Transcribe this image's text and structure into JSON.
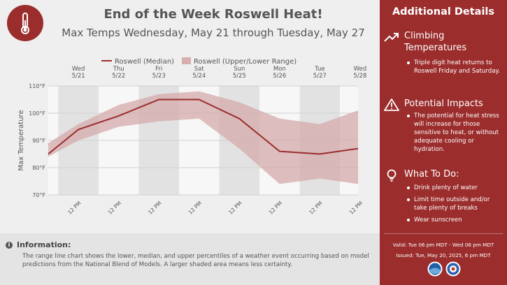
{
  "header": {
    "title": "End of the Week Roswell Heat!",
    "subtitle": "Max Temps Wednesday, May 21 through Tuesday, May 27",
    "badge_icon": "thermometer-icon"
  },
  "chart_data": {
    "type": "area",
    "legend": [
      {
        "label": "Roswell (Median)",
        "color": "#9b2d2d"
      },
      {
        "label": "Roswell (Upper/Lower Range)",
        "color": "#d7aeae"
      }
    ],
    "legend_position": "top",
    "ylabel": "Max Temperature",
    "ylim": [
      70,
      110
    ],
    "y_ticks": [
      70,
      80,
      90,
      100,
      110
    ],
    "y_tick_labels": [
      "70°F",
      "80°F",
      "90°F",
      "100°F",
      "110°F"
    ],
    "day_labels": [
      {
        "dow": "Wed",
        "date": "5/21"
      },
      {
        "dow": "Thu",
        "date": "5/22"
      },
      {
        "dow": "Fri",
        "date": "5/23"
      },
      {
        "dow": "Sat",
        "date": "5/24"
      },
      {
        "dow": "Sun",
        "date": "5/25"
      },
      {
        "dow": "Mon",
        "date": "5/26"
      },
      {
        "dow": "Tue",
        "date": "5/27"
      },
      {
        "dow": "Wed",
        "date": "5/28"
      }
    ],
    "x_tick_label": "12 PM",
    "x_ticks_count": 8,
    "x_range_days": [
      -0.25,
      7.45
    ],
    "series": [
      {
        "name": "Roswell (Median)",
        "x_days": [
          -0.25,
          0.5,
          1.5,
          2.5,
          3.5,
          4.5,
          5.5,
          6.5,
          7.45
        ],
        "values": [
          85,
          94,
          99,
          105,
          105,
          98,
          86,
          85,
          87
        ]
      },
      {
        "name": "Roswell (Upper/Lower Range)",
        "x_days": [
          -0.25,
          0.5,
          1.5,
          2.5,
          3.5,
          4.5,
          5.5,
          6.5,
          7.45
        ],
        "upper": [
          89,
          96,
          103,
          107,
          108,
          104,
          98,
          96,
          101
        ],
        "lower": [
          84,
          90,
          95,
          97,
          98,
          87,
          74,
          76,
          74
        ]
      }
    ],
    "grid": true
  },
  "info": {
    "icon": "info-icon",
    "title": "Information:",
    "text": "The range line chart shows the lower, median, and upper percentiles of a weather event occurring based on model predictions from the National Blend of Models. A larger shaded area means less certainty."
  },
  "side": {
    "title": "Additional Details",
    "sections": [
      {
        "icon": "trend-up-icon",
        "heading": "Climbing Temperatures",
        "items": [
          "Triple digit heat returns to Roswell Friday and Saturday."
        ]
      },
      {
        "icon": "warning-icon",
        "heading": "Potential Impacts",
        "items": [
          "The potential for heat stress will increase for those sensitive to heat, or without adequate cooling or hydration."
        ]
      },
      {
        "icon": "lightbulb-icon",
        "heading": "What To Do:",
        "items": [
          "Drink plenty of water",
          "Limit time outside and/or take plenty of breaks",
          "Wear sunscreen"
        ]
      }
    ],
    "valid": "Valid: Tue 06 pm MDT - Wed 06 pm MDT",
    "issued": "Issued: Tue, May 20, 2025, 6 pm MDT",
    "logos": [
      "noaa-logo",
      "nws-logo"
    ]
  }
}
